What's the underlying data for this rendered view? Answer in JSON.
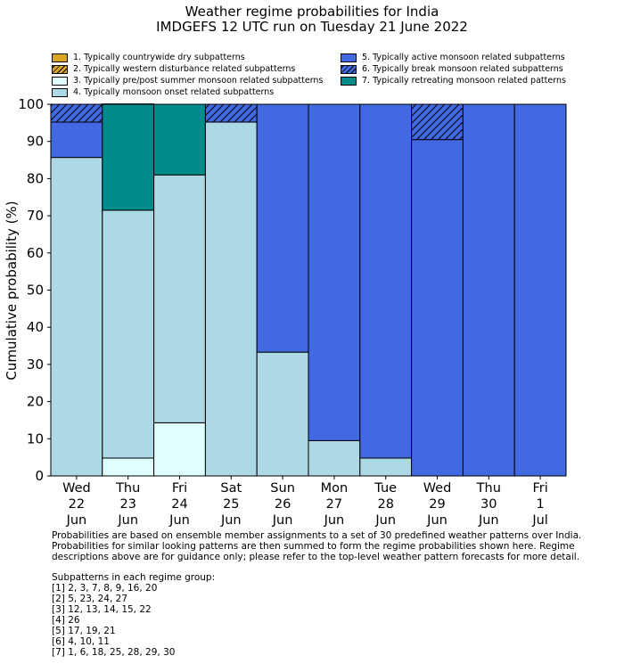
{
  "title_line1": "Weather regime probabilities for India",
  "title_line2": "IMDGEFS 12 UTC run on Tuesday 21 June 2022",
  "chart_data": {
    "type": "bar",
    "stacked": true,
    "ylabel": "Cumulative probability (%)",
    "ylim": [
      0,
      100
    ],
    "yticks": [
      0,
      10,
      20,
      30,
      40,
      50,
      60,
      70,
      80,
      90,
      100
    ],
    "categories": [
      [
        "Wed",
        "22",
        "Jun"
      ],
      [
        "Thu",
        "23",
        "Jun"
      ],
      [
        "Fri",
        "24",
        "Jun"
      ],
      [
        "Sat",
        "25",
        "Jun"
      ],
      [
        "Sun",
        "26",
        "Jun"
      ],
      [
        "Mon",
        "27",
        "Jun"
      ],
      [
        "Tue",
        "28",
        "Jun"
      ],
      [
        "Wed",
        "29",
        "Jun"
      ],
      [
        "Thu",
        "30",
        "Jun"
      ],
      [
        "Fri",
        "1",
        "Jul"
      ]
    ],
    "legend_placement": "top, two columns",
    "series": [
      {
        "name": "1. Typically countrywide dry subpatterns",
        "color": "#DAA520",
        "hatch": false,
        "values": [
          0,
          0,
          0,
          0,
          0,
          0,
          0,
          0,
          0,
          0
        ]
      },
      {
        "name": "2. Typically western disturbance related subpatterns",
        "color": "#DAA520",
        "hatch": true,
        "values": [
          0,
          0,
          0,
          0,
          0,
          0,
          0,
          0,
          0,
          0
        ]
      },
      {
        "name": "3. Typically pre/post summer monsoon related subpatterns",
        "color": "#E0FFFF",
        "hatch": false,
        "values": [
          0,
          4.8,
          14.3,
          0,
          0,
          0,
          0,
          0,
          0,
          0
        ]
      },
      {
        "name": "4. Typically monsoon onset related subpatterns",
        "color": "#ADD8E6",
        "hatch": false,
        "values": [
          85.7,
          66.7,
          66.7,
          95.2,
          33.3,
          9.5,
          4.8,
          0,
          0,
          0
        ]
      },
      {
        "name": "5. Typically active monsoon related subpatterns",
        "color": "#4169E1",
        "hatch": false,
        "values": [
          9.5,
          0,
          0,
          0,
          66.7,
          90.5,
          95.2,
          90.5,
          100,
          100
        ]
      },
      {
        "name": "6. Typically break monsoon related subpatterns",
        "color": "#4169E1",
        "hatch": true,
        "values": [
          4.8,
          0,
          0,
          4.8,
          0,
          0,
          0,
          9.5,
          0,
          0
        ]
      },
      {
        "name": "7. Typically retreating monsoon related patterns",
        "color": "#008B8B",
        "hatch": false,
        "values": [
          0,
          28.6,
          19.0,
          0,
          0,
          0,
          0,
          0,
          0,
          0
        ]
      }
    ]
  },
  "notes": {
    "line1": "Probabilities are based on ensemble member assignments to a set of 30 predefined weather patterns over India.",
    "line2": "Probabilities for similar looking patterns are then summed to form the regime probabilities shown here. Regime",
    "line3": "descriptions above are for guidance only; please refer to the top-level weather pattern forecasts for more detail.",
    "subpatterns_heading": "Subpatterns in each regime group:",
    "groups": [
      "[1] 2, 3, 7, 8, 9, 16, 20",
      "[2] 5, 23, 24, 27",
      "[3] 12, 13, 14, 15, 22",
      "[4] 26",
      "[5] 17, 19, 21",
      "[6] 4, 10, 11",
      "[7] 1, 6, 18, 25, 28, 29, 30"
    ]
  }
}
